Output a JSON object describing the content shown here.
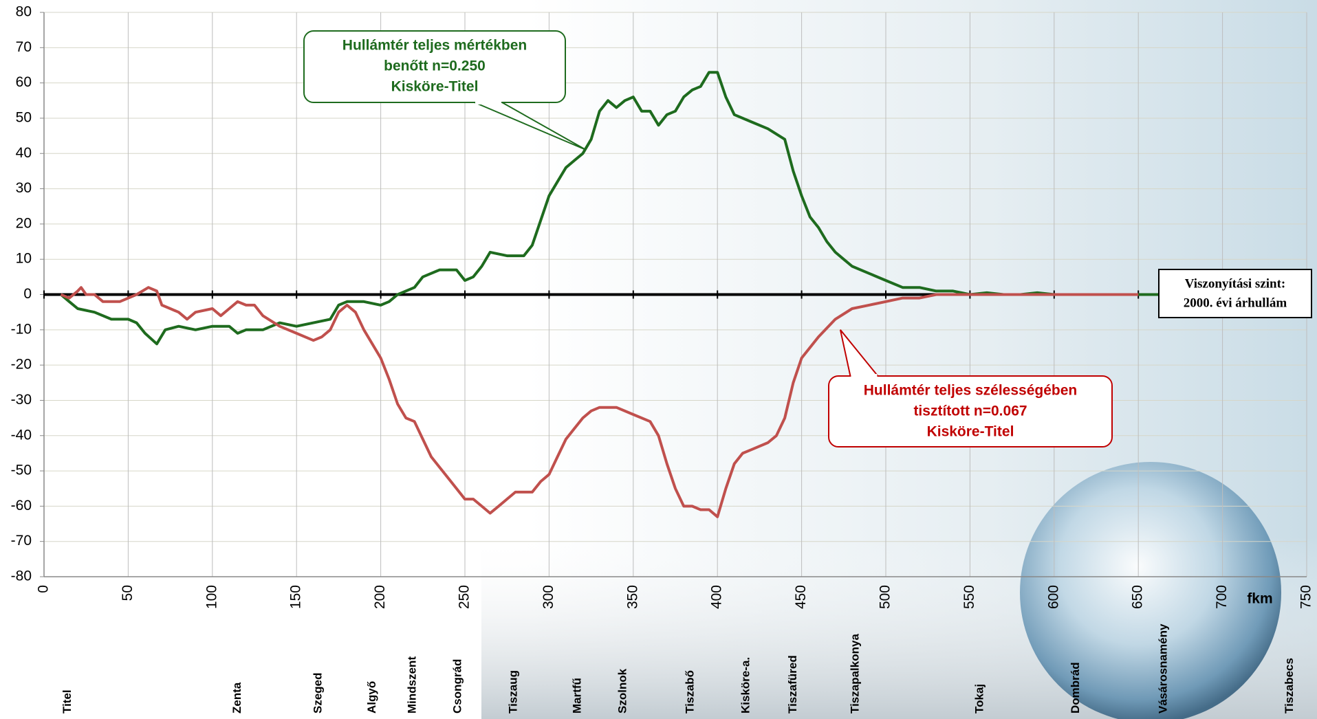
{
  "chart_data": {
    "type": "line",
    "xlim": [
      0,
      750
    ],
    "xticks": [
      0,
      50,
      100,
      150,
      200,
      250,
      300,
      350,
      400,
      450,
      500,
      550,
      600,
      650,
      700,
      750
    ],
    "ylim": [
      -80,
      80
    ],
    "yticks": [
      -80,
      -70,
      -60,
      -50,
      -40,
      -30,
      -20,
      -10,
      0,
      10,
      20,
      30,
      40,
      50,
      60,
      70,
      80
    ],
    "x_label": "fkm",
    "grid": true,
    "series": [
      {
        "color": "#1e6b1e",
        "x": [
          10,
          15,
          20,
          30,
          40,
          50,
          55,
          60,
          67,
          72,
          80,
          90,
          100,
          110,
          115,
          120,
          130,
          140,
          150,
          160,
          170,
          175,
          180,
          190,
          200,
          205,
          210,
          220,
          225,
          235,
          245,
          250,
          255,
          260,
          265,
          275,
          285,
          290,
          300,
          305,
          310,
          315,
          320,
          325,
          330,
          335,
          340,
          345,
          350,
          355,
          360,
          365,
          370,
          375,
          380,
          385,
          390,
          395,
          400,
          405,
          410,
          420,
          430,
          440,
          445,
          450,
          455,
          460,
          465,
          470,
          475,
          480,
          490,
          500,
          510,
          520,
          530,
          540,
          550,
          560,
          570,
          580,
          590,
          600,
          650,
          700,
          750
        ],
        "values": [
          0,
          -2,
          -4,
          -5,
          -7,
          -7,
          -8,
          -11,
          -14,
          -10,
          -9,
          -10,
          -9,
          -9,
          -11,
          -10,
          -10,
          -8,
          -9,
          -8,
          -7,
          -3,
          -2,
          -2,
          -3,
          -2,
          0,
          2,
          5,
          7,
          7,
          4,
          5,
          8,
          12,
          11,
          11,
          14,
          28,
          32,
          36,
          38,
          40,
          44,
          52,
          55,
          53,
          55,
          56,
          52,
          52,
          48,
          51,
          52,
          56,
          58,
          59,
          63,
          63,
          56,
          51,
          49,
          47,
          44,
          35,
          28,
          22,
          19,
          15,
          12,
          10,
          8,
          6,
          4,
          2,
          2,
          1,
          1,
          0,
          0.5,
          0,
          0,
          0.5,
          0,
          0,
          0,
          0
        ]
      },
      {
        "color": "#c0504d",
        "x": [
          10,
          15,
          20,
          22,
          25,
          30,
          35,
          45,
          55,
          62,
          67,
          70,
          75,
          80,
          85,
          90,
          100,
          105,
          110,
          115,
          120,
          125,
          130,
          140,
          150,
          160,
          165,
          170,
          175,
          180,
          185,
          190,
          200,
          205,
          210,
          215,
          220,
          225,
          230,
          240,
          245,
          250,
          255,
          260,
          265,
          270,
          275,
          280,
          285,
          290,
          295,
          300,
          305,
          310,
          315,
          320,
          325,
          330,
          340,
          350,
          360,
          365,
          370,
          375,
          380,
          385,
          390,
          395,
          400,
          405,
          410,
          415,
          420,
          430,
          435,
          440,
          445,
          450,
          460,
          470,
          480,
          490,
          500,
          510,
          520,
          530,
          550,
          600,
          650
        ],
        "values": [
          0,
          -1,
          1,
          2,
          0,
          0,
          -2,
          -2,
          0,
          2,
          1,
          -3,
          -4,
          -5,
          -7,
          -5,
          -4,
          -6,
          -4,
          -2,
          -3,
          -3,
          -6,
          -9,
          -11,
          -13,
          -12,
          -10,
          -5,
          -3,
          -5,
          -10,
          -18,
          -24,
          -31,
          -35,
          -36,
          -41,
          -46,
          -52,
          -55,
          -58,
          -58,
          -60,
          -62,
          -60,
          -58,
          -56,
          -56,
          -56,
          -53,
          -51,
          -46,
          -41,
          -38,
          -35,
          -33,
          -32,
          -32,
          -34,
          -36,
          -40,
          -48,
          -55,
          -60,
          -60,
          -61,
          -61,
          -63,
          -55,
          -48,
          -45,
          -44,
          -42,
          -40,
          -35,
          -25,
          -18,
          -12,
          -7,
          -4,
          -3,
          -2,
          -1,
          -1,
          0,
          0,
          0,
          0
        ]
      }
    ],
    "annotations": [
      {
        "lines": [
          "Hullámtér teljes mértékben",
          "benőtt n=0.250",
          "Kisköre-Titel"
        ],
        "xy": [
          322,
          41
        ],
        "color": "#1e6b1e"
      },
      {
        "lines": [
          "Hullámtér teljes szélességében",
          "tisztított n=0.067",
          "Kisköre-Titel"
        ],
        "xy": [
          473,
          -10
        ],
        "color": "#c00000"
      }
    ],
    "reference_label": [
      "Viszonyítási szint:",
      "2000. évi árhullám"
    ],
    "stations": [
      {
        "name": "Titel",
        "km": 14
      },
      {
        "name": "Zenta",
        "km": 115
      },
      {
        "name": "Szeged",
        "km": 163
      },
      {
        "name": "Algyő",
        "km": 195
      },
      {
        "name": "Mindszent",
        "km": 219
      },
      {
        "name": "Csongrád",
        "km": 246
      },
      {
        "name": "Tiszaug",
        "km": 279
      },
      {
        "name": "Martfű",
        "km": 317
      },
      {
        "name": "Szolnok",
        "km": 344
      },
      {
        "name": "Tiszabő",
        "km": 384
      },
      {
        "name": "Kisköre-a.",
        "km": 417
      },
      {
        "name": "Tiszafüred",
        "km": 445
      },
      {
        "name": "Tiszapalkonya",
        "km": 482
      },
      {
        "name": "Tokaj",
        "km": 556
      },
      {
        "name": "Dombrád",
        "km": 613
      },
      {
        "name": "Vásárosnamény",
        "km": 665
      },
      {
        "name": "Tiszabecs",
        "km": 740
      }
    ]
  }
}
